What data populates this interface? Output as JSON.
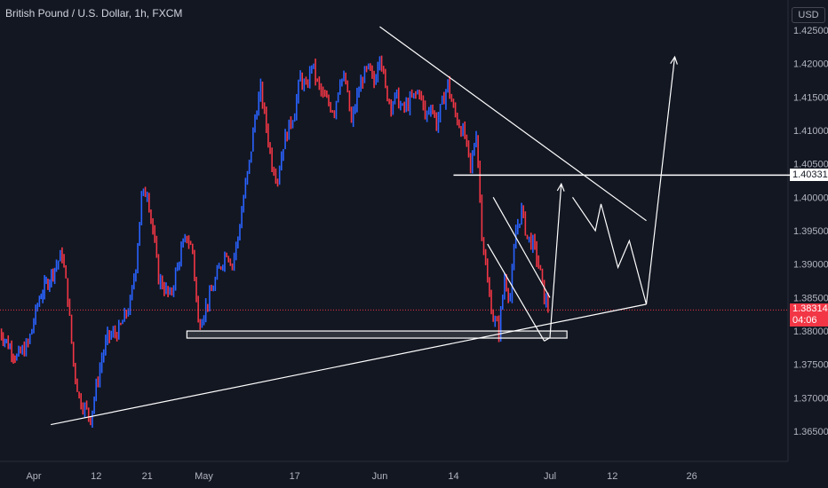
{
  "header": {
    "symbol": "British Pound / U.S. Dollar, 1h, FXCM",
    "currency_button": "USD"
  },
  "price_labels": {
    "level": "1.40331",
    "last": "1.38314",
    "countdown": "04:06"
  },
  "colors": {
    "background": "#131722",
    "up_candle": "#2962ff",
    "down_candle": "#f23645",
    "drawing": "#ffffff",
    "last_price_line": "#f23645"
  },
  "chart_data": {
    "type": "line",
    "title": "British Pound / U.S. Dollar, 1h, FXCM",
    "xlabel": "",
    "ylabel": "",
    "ylim": [
      1.3605,
      1.4295
    ],
    "y_ticks": [
      "1.36500",
      "1.37000",
      "1.37500",
      "1.38000",
      "1.38500",
      "1.39000",
      "1.39500",
      "1.40000",
      "1.40500",
      "1.41000",
      "1.41500",
      "1.42000",
      "1.42500"
    ],
    "x_ticks": [
      "Apr",
      "12",
      "21",
      "May",
      "17",
      "Jun",
      "14",
      "Jul",
      "12",
      "26"
    ],
    "x_tick_dates": [
      "2021-04-01",
      "2021-04-12",
      "2021-04-21",
      "2021-05-01",
      "2021-05-17",
      "2021-06-01",
      "2021-06-14",
      "2021-07-01",
      "2021-07-12",
      "2021-07-26"
    ],
    "last_price": 1.38314,
    "horizontal_level": 1.40331,
    "series": [
      {
        "values": [
          [
            "2021-03-26",
            1.38
          ],
          [
            "2021-03-29",
            1.376
          ],
          [
            "2021-03-31",
            1.378
          ],
          [
            "2021-04-02",
            1.385
          ],
          [
            "2021-04-05",
            1.39
          ],
          [
            "2021-04-06",
            1.3915
          ],
          [
            "2021-04-07",
            1.385
          ],
          [
            "2021-04-08",
            1.375
          ],
          [
            "2021-04-09",
            1.37
          ],
          [
            "2021-04-11",
            1.367
          ],
          [
            "2021-04-13",
            1.376
          ],
          [
            "2021-04-14",
            1.379
          ],
          [
            "2021-04-16",
            1.38
          ],
          [
            "2021-04-18",
            1.384
          ],
          [
            "2021-04-19",
            1.39
          ],
          [
            "2021-04-20",
            1.4
          ],
          [
            "2021-04-21",
            1.401
          ],
          [
            "2021-04-22",
            1.395
          ],
          [
            "2021-04-23",
            1.388
          ],
          [
            "2021-04-25",
            1.385
          ],
          [
            "2021-04-27",
            1.392
          ],
          [
            "2021-04-28",
            1.394
          ],
          [
            "2021-04-29",
            1.392
          ],
          [
            "2021-04-30",
            1.381
          ],
          [
            "2021-05-02",
            1.385
          ],
          [
            "2021-05-04",
            1.39
          ],
          [
            "2021-05-05",
            1.392
          ],
          [
            "2021-05-06",
            1.39
          ],
          [
            "2021-05-07",
            1.394
          ],
          [
            "2021-05-08",
            1.4
          ],
          [
            "2021-05-09",
            1.405
          ],
          [
            "2021-05-10",
            1.412
          ],
          [
            "2021-05-11",
            1.416
          ],
          [
            "2021-05-13",
            1.405
          ],
          [
            "2021-05-14",
            1.403
          ],
          [
            "2021-05-15",
            1.408
          ],
          [
            "2021-05-17",
            1.413
          ],
          [
            "2021-05-18",
            1.418
          ],
          [
            "2021-05-19",
            1.416
          ],
          [
            "2021-05-20",
            1.42
          ],
          [
            "2021-05-21",
            1.417
          ],
          [
            "2021-05-22",
            1.415
          ],
          [
            "2021-05-24",
            1.413
          ],
          [
            "2021-05-25",
            1.418
          ],
          [
            "2021-05-26",
            1.417
          ],
          [
            "2021-05-27",
            1.411
          ],
          [
            "2021-05-28",
            1.415
          ],
          [
            "2021-05-29",
            1.418
          ],
          [
            "2021-05-30",
            1.419
          ],
          [
            "2021-05-31",
            1.417
          ],
          [
            "2021-06-01",
            1.422
          ],
          [
            "2021-06-02",
            1.416
          ],
          [
            "2021-06-03",
            1.414
          ],
          [
            "2021-06-04",
            1.415
          ],
          [
            "2021-06-05",
            1.413
          ],
          [
            "2021-06-07",
            1.415
          ],
          [
            "2021-06-08",
            1.416
          ],
          [
            "2021-06-09",
            1.412
          ],
          [
            "2021-06-10",
            1.414
          ],
          [
            "2021-06-11",
            1.411
          ],
          [
            "2021-06-12",
            1.414
          ],
          [
            "2021-06-13",
            1.417
          ],
          [
            "2021-06-14",
            1.413
          ],
          [
            "2021-06-15",
            1.411
          ],
          [
            "2021-06-16",
            1.409
          ],
          [
            "2021-06-17",
            1.404
          ],
          [
            "2021-06-18",
            1.41
          ],
          [
            "2021-06-19",
            1.395
          ],
          [
            "2021-06-20",
            1.387
          ],
          [
            "2021-06-21",
            1.382
          ],
          [
            "2021-06-22",
            1.38
          ],
          [
            "2021-06-23",
            1.388
          ],
          [
            "2021-06-24",
            1.385
          ],
          [
            "2021-06-25",
            1.395
          ],
          [
            "2021-06-26",
            1.398
          ],
          [
            "2021-06-27",
            1.394
          ],
          [
            "2021-06-28",
            1.393
          ],
          [
            "2021-06-29",
            1.39
          ],
          [
            "2021-06-30",
            1.385
          ],
          [
            "2021-07-01",
            1.3831
          ]
        ]
      }
    ],
    "annotations": [
      {
        "type": "trendline",
        "points": [
          [
            "2021-04-04",
            1.366
          ],
          [
            "2021-07-18",
            1.384
          ]
        ]
      },
      {
        "type": "trendline",
        "points": [
          [
            "2021-06-01",
            1.4255
          ],
          [
            "2021-07-18",
            1.3965
          ]
        ]
      },
      {
        "type": "horizontal_ray",
        "points": [
          [
            "2021-06-14",
            1.40331
          ],
          [
            "2021-08-31",
            1.40331
          ]
        ]
      },
      {
        "type": "rectangle",
        "points": [
          [
            "2021-04-28",
            1.38
          ],
          [
            "2021-07-04",
            1.379
          ]
        ]
      },
      {
        "type": "channel_line",
        "points": [
          [
            "2021-06-21",
            1.4
          ],
          [
            "2021-07-01",
            1.385
          ]
        ]
      },
      {
        "type": "channel_line",
        "points": [
          [
            "2021-06-20",
            1.393
          ],
          [
            "2021-06-30",
            1.3785
          ]
        ]
      },
      {
        "type": "projection_path",
        "points": [
          [
            "2021-06-30",
            1.3785
          ],
          [
            "2021-07-01",
            1.379
          ],
          [
            "2021-07-03",
            1.402
          ]
        ]
      },
      {
        "type": "projection_path",
        "points": [
          [
            "2021-07-05",
            1.4
          ],
          [
            "2021-07-09",
            1.395
          ],
          [
            "2021-07-10",
            1.399
          ],
          [
            "2021-07-13",
            1.3895
          ],
          [
            "2021-07-15",
            1.3935
          ],
          [
            "2021-07-18",
            1.384
          ],
          [
            "2021-07-23",
            1.421
          ]
        ]
      }
    ]
  }
}
